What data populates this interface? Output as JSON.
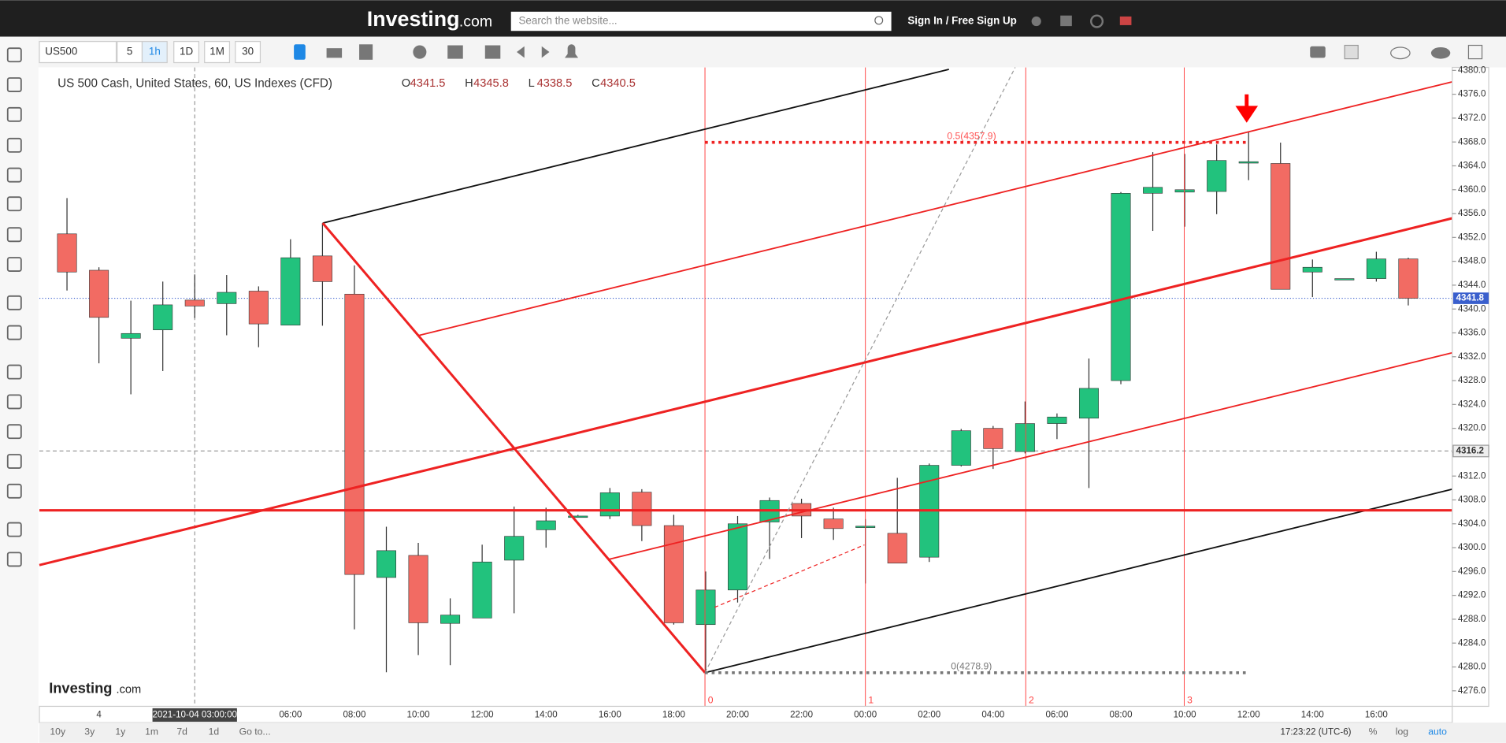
{
  "header": {
    "logo": "Investing",
    "logo_suffix": ".com",
    "search_placeholder": "Search the website...",
    "sign_in": "Sign In / Free Sign Up"
  },
  "toolbar": {
    "symbol": "US500",
    "intervals": [
      "5",
      "1h",
      "1D",
      "1M",
      "30"
    ]
  },
  "chart": {
    "type": "candlestick",
    "title": "US 500 Cash, United States, 60, US Indexes (CFD)",
    "ohlc": [
      {
        "label": "O",
        "value": 4341.5
      },
      {
        "label": "H",
        "value": 4345.8
      },
      {
        "label": "L",
        "value": 4338.5
      },
      {
        "label": "C",
        "value": 4340.5
      }
    ],
    "open": [
      4352.6,
      4346.5,
      4335.1,
      4336.5,
      4341.5,
      4340.9,
      4343.0,
      4337.3,
      4348.9,
      4342.5,
      4295.0,
      4298.7,
      4287.3,
      4288.2,
      4297.9,
      4303.0,
      4305.3,
      4305.3,
      4309.3,
      4303.7,
      4287.1,
      4292.9,
      4304.3,
      4307.4,
      4304.8,
      4303.5,
      4302.4,
      4298.4,
      4313.8,
      4320.0,
      4316.1,
      4320.8,
      4321.7,
      4328.0,
      4359.4,
      4359.6,
      4359.7,
      4364.5,
      4364.4,
      4346.2,
      4345.1,
      4345.1,
      4348.4
    ],
    "high": [
      4358.6,
      4347.0,
      4341.4,
      4344.6,
      4345.8,
      4345.7,
      4343.8,
      4351.7,
      4354.4,
      4347.3,
      4303.5,
      4300.8,
      4291.5,
      4300.5,
      4306.9,
      4306.7,
      4305.5,
      4310.0,
      4309.8,
      4305.5,
      4296.0,
      4305.3,
      4308.4,
      4308.2,
      4306.7,
      4304.8,
      4311.7,
      4314.1,
      4319.9,
      4320.4,
      4324.5,
      4322.5,
      4331.7,
      4359.6,
      4366.3,
      4366.0,
      4367.6,
      4369.7,
      4367.9,
      4348.3,
      4345.1,
      4349.6,
      4348.6
    ],
    "low": [
      4343.1,
      4330.9,
      4325.7,
      4329.6,
      4338.5,
      4335.6,
      4333.6,
      4337.3,
      4337.2,
      4286.3,
      4279.1,
      4282.0,
      4280.3,
      4288.2,
      4289.0,
      4300.0,
      4305.1,
      4304.8,
      4301.1,
      4287.1,
      4279.4,
      4290.8,
      4298.1,
      4301.6,
      4301.3,
      4294.0,
      4297.4,
      4297.6,
      4313.6,
      4313.2,
      4315.8,
      4318.2,
      4310.0,
      4327.4,
      4353.1,
      4353.8,
      4355.9,
      4361.6,
      4343.3,
      4342.0,
      4345.1,
      4344.6,
      4340.6
    ],
    "close": [
      4346.2,
      4338.6,
      4335.9,
      4340.7,
      4340.5,
      4342.8,
      4337.5,
      4348.6,
      4344.6,
      4295.5,
      4299.5,
      4287.4,
      4288.7,
      4297.6,
      4301.9,
      4304.5,
      4305.3,
      4309.2,
      4303.7,
      4287.4,
      4292.9,
      4304.0,
      4307.9,
      4305.3,
      4303.2,
      4303.6,
      4297.4,
      4313.8,
      4319.6,
      4316.6,
      4320.8,
      4321.9,
      4326.7,
      4359.4,
      4360.4,
      4360.0,
      4364.9,
      4364.7,
      4343.3,
      4347.0,
      4345.1,
      4348.4,
      4341.8
    ],
    "ylim": [
      4273.4,
      4380.5
    ],
    "yticks": [
      {
        "value": 4380,
        "label": "4380.0"
      },
      {
        "value": 4376,
        "label": "4376.0"
      },
      {
        "value": 4372,
        "label": "4372.0"
      },
      {
        "value": 4368,
        "label": "4368.0"
      },
      {
        "value": 4364,
        "label": "4364.0"
      },
      {
        "value": 4360,
        "label": "4360.0"
      },
      {
        "value": 4356,
        "label": "4356.0"
      },
      {
        "value": 4352,
        "label": "4352.0"
      },
      {
        "value": 4348,
        "label": "4348.0"
      },
      {
        "value": 4344,
        "label": "4344.0"
      },
      {
        "value": 4340,
        "label": "4340.0"
      },
      {
        "value": 4336,
        "label": "4336.0"
      },
      {
        "value": 4332,
        "label": "4332.0"
      },
      {
        "value": 4328,
        "label": "4328.0"
      },
      {
        "value": 4324,
        "label": "4324.0"
      },
      {
        "value": 4320,
        "label": "4320.0"
      },
      {
        "value": 4316,
        "label": "4316.0"
      },
      {
        "value": 4312,
        "label": "4312.0"
      },
      {
        "value": 4308,
        "label": "4308.0"
      },
      {
        "value": 4304,
        "label": "4304.0"
      },
      {
        "value": 4300,
        "label": "4300.0"
      },
      {
        "value": 4296,
        "label": "4296.0"
      },
      {
        "value": 4292,
        "label": "4292.0"
      },
      {
        "value": 4288,
        "label": "4288.0"
      },
      {
        "value": 4284,
        "label": "4284.0"
      },
      {
        "value": 4280,
        "label": "4280.0"
      },
      {
        "value": 4276,
        "label": "4276.0"
      }
    ],
    "xticks": [
      "4",
      "06:00",
      "08:00",
      "10:00",
      "12:00",
      "14:00",
      "16:00",
      "18:00",
      "20:00",
      "22:00",
      "00:00",
      "02:00",
      "04:00",
      "06:00",
      "08:00",
      "10:00",
      "12:00",
      "14:00",
      "16:00"
    ],
    "crosshair_time": "2021-10-04 03:00:00",
    "last_price": 4341.8,
    "crosshair_price": 4316.2,
    "fib_top": "0.5(4357.9)",
    "fib_bottom": "0(4278.9)",
    "fib_marks": [
      "0",
      "1",
      "2",
      "3"
    ],
    "watermark": "Investing",
    "watermark_suffix": ".com",
    "up_color": "#22c27d",
    "down_color": "#f26b63"
  },
  "footer": {
    "ranges": [
      "10y",
      "3y",
      "1y",
      "1m",
      "7d",
      "1d"
    ],
    "goto": "Go to...",
    "clock": "17:23:22 (UTC-6)",
    "options": [
      "%",
      "log",
      "auto"
    ]
  }
}
